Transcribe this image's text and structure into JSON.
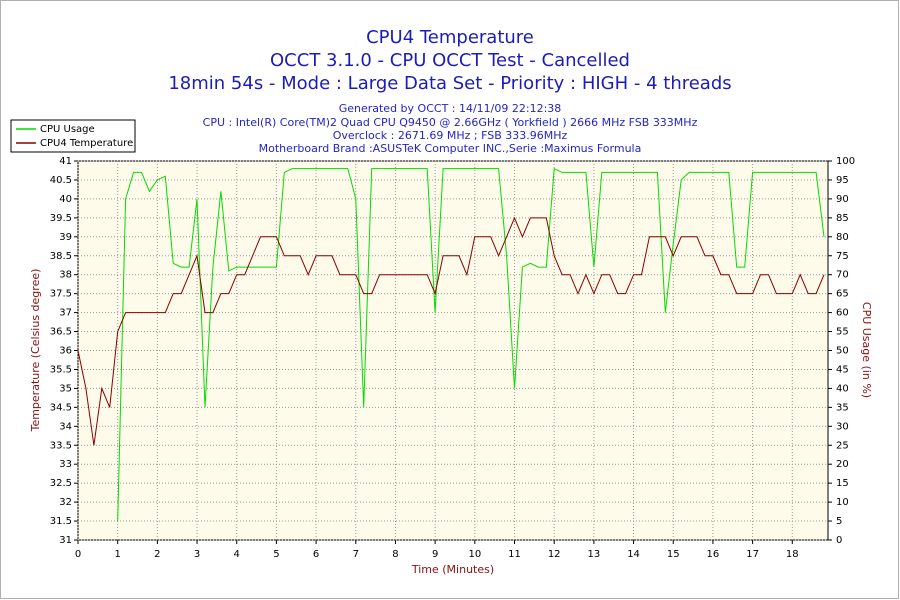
{
  "chart_data": {
    "type": "line",
    "title": "CPU4 Temperature",
    "title_lines": [
      "OCCT 3.1.0 - CPU OCCT Test - Cancelled",
      "18min 54s - Mode : Large Data Set - Priority : HIGH - 4 threads"
    ],
    "subtitle_lines": [
      "Generated by OCCT : 14/11/09 22:12:38",
      "CPU : Intel(R) Core(TM)2 Quad CPU Q9450 @ 2.66GHz ( Yorkfield ) 2666 MHz FSB 333MHz",
      "Overclock : 2671.69 MHz ; FSB 333.96MHz",
      "Motherboard Brand :ASUSTeK Computer INC.,Serie :Maximus Formula"
    ],
    "x_label": "Time (Minutes)",
    "y_label": "Temperature (Celsius degree)",
    "y2_label": "CPU Usage (in %)",
    "x": [
      0,
      0.2,
      0.4,
      0.6,
      0.8,
      1,
      1.2,
      1.4,
      1.6,
      1.8,
      2,
      2.2,
      2.4,
      2.6,
      2.8,
      3,
      3.2,
      3.4,
      3.6,
      3.8,
      4,
      4.2,
      4.4,
      4.6,
      4.8,
      5,
      5.2,
      5.4,
      5.6,
      5.8,
      6,
      6.2,
      6.4,
      6.6,
      6.8,
      7,
      7.2,
      7.4,
      7.6,
      7.8,
      8,
      8.2,
      8.4,
      8.6,
      8.8,
      9,
      9.2,
      9.4,
      9.6,
      9.8,
      10,
      10.2,
      10.4,
      10.6,
      10.8,
      11,
      11.2,
      11.4,
      11.6,
      11.8,
      12,
      12.2,
      12.4,
      12.6,
      12.8,
      13,
      13.2,
      13.4,
      13.6,
      13.8,
      14,
      14.2,
      14.4,
      14.6,
      14.8,
      15,
      15.2,
      15.4,
      15.6,
      15.8,
      16,
      16.2,
      16.4,
      16.6,
      16.8,
      17,
      17.2,
      17.4,
      17.6,
      17.8,
      18,
      18.2,
      18.4,
      18.6,
      18.8
    ],
    "series": [
      {
        "name": "CPU Usage",
        "color": "#00dd00",
        "axis": "y2",
        "values": [
          null,
          null,
          null,
          null,
          null,
          5,
          90,
          97,
          97,
          92,
          95,
          96,
          73,
          72,
          72,
          90,
          35,
          72,
          92,
          71,
          72,
          72,
          72,
          72,
          72,
          72,
          97,
          98,
          98,
          98,
          98,
          98,
          98,
          98,
          98,
          90,
          35,
          98,
          98,
          98,
          98,
          98,
          98,
          98,
          98,
          60,
          98,
          98,
          98,
          98,
          98,
          98,
          98,
          98,
          75,
          40,
          72,
          73,
          72,
          72,
          98,
          97,
          97,
          97,
          97,
          72,
          97,
          97,
          97,
          97,
          97,
          97,
          97,
          97,
          60,
          78,
          95,
          97,
          97,
          97,
          97,
          97,
          97,
          72,
          72,
          97,
          97,
          97,
          97,
          97,
          97,
          97,
          97,
          97,
          80
        ]
      },
      {
        "name": "CPU4 Temperature",
        "color": "#8b0000",
        "values": [
          36,
          35,
          33.5,
          35,
          34.5,
          36.5,
          37,
          37,
          37,
          37,
          37,
          37,
          37.5,
          37.5,
          38,
          38.5,
          37,
          37,
          37.5,
          37.5,
          38,
          38,
          38.5,
          39,
          39,
          39,
          38.5,
          38.5,
          38.5,
          38,
          38.5,
          38.5,
          38.5,
          38,
          38,
          38,
          37.5,
          37.5,
          38,
          38,
          38,
          38,
          38,
          38,
          38,
          37.5,
          38.5,
          38.5,
          38.5,
          38,
          39,
          39,
          39,
          38.5,
          39,
          39.5,
          39,
          39.5,
          39.5,
          39.5,
          38.5,
          38,
          38,
          37.5,
          38,
          37.5,
          38,
          38,
          37.5,
          37.5,
          38,
          38,
          39,
          39,
          39,
          38.5,
          39,
          39,
          39,
          38.5,
          38.5,
          38,
          38,
          37.5,
          37.5,
          37.5,
          38,
          38,
          37.5,
          37.5,
          37.5,
          38,
          37.5,
          37.5,
          38
        ]
      }
    ],
    "xlim": [
      0,
      18.9
    ],
    "xticks": [
      0,
      1,
      2,
      3,
      4,
      5,
      6,
      7,
      8,
      9,
      10,
      11,
      12,
      13,
      14,
      15,
      16,
      17,
      18
    ],
    "ylim": [
      31,
      41
    ],
    "yticks": [
      31,
      31.5,
      32,
      32.5,
      33,
      33.5,
      34,
      34.5,
      35,
      35.5,
      36,
      36.5,
      37,
      37.5,
      38,
      38.5,
      39,
      39.5,
      40,
      40.5,
      41
    ],
    "y2lim": [
      0,
      100
    ],
    "y2ticks": [
      0,
      5,
      10,
      15,
      20,
      25,
      30,
      35,
      40,
      45,
      50,
      55,
      60,
      65,
      70,
      75,
      80,
      85,
      90,
      95,
      100
    ],
    "grid": true,
    "legend": "top-left"
  }
}
